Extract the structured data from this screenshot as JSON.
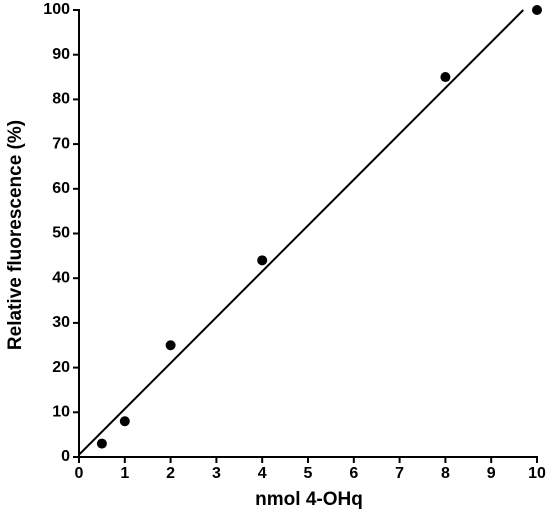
{
  "chart_data": {
    "type": "scatter",
    "xlabel": "nmol 4-OHq",
    "ylabel": "Relative fluorescence (%)",
    "series": [
      {
        "x": [
          0.5,
          1,
          2,
          4,
          8,
          10
        ],
        "values": [
          3,
          8,
          25,
          44,
          85,
          100
        ],
        "color": "#000000"
      }
    ],
    "fit_line": {
      "x": [
        0,
        9.7
      ],
      "values": [
        0.5,
        100
      ],
      "color": "#000000"
    },
    "xlim": [
      0,
      10
    ],
    "xticks": [
      0,
      1,
      2,
      3,
      4,
      5,
      6,
      7,
      8,
      9,
      10
    ],
    "ylim": [
      0,
      100
    ],
    "yticks": [
      0,
      10,
      20,
      30,
      40,
      50,
      60,
      70,
      80,
      90,
      100
    ],
    "grid": false
  }
}
